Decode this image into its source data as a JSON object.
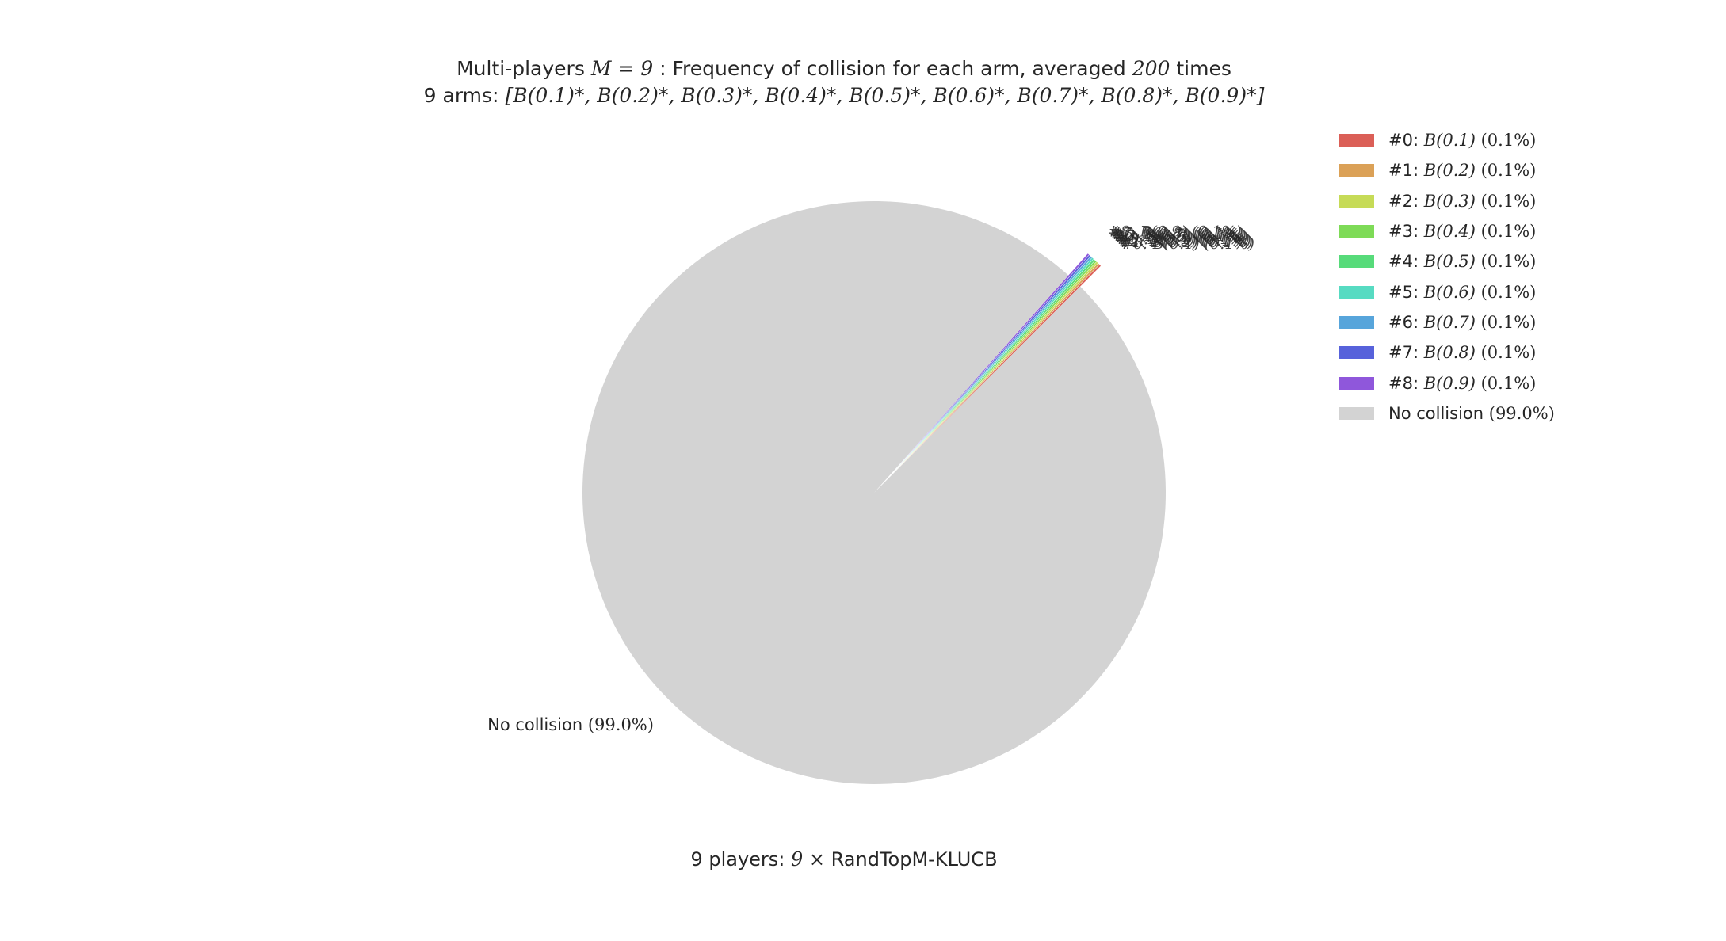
{
  "chart_data": {
    "type": "pie",
    "title_prefix": "Multi-players ",
    "title_math_1": "M = 9",
    "title_mid": " : Frequency of collision for each arm, averaged ",
    "title_math_2": "200",
    "title_suffix": " times",
    "subtitle_prefix": "9 arms: ",
    "subtitle_math": "[B(0.1)*, B(0.2)*, B(0.3)*, B(0.4)*, B(0.5)*, B(0.6)*, B(0.7)*, B(0.8)*, B(0.9)*]",
    "xlabel_prefix": "9 players: ",
    "xlabel_math": "9 ×",
    "xlabel_suffix": " RandTopM-KLUCB",
    "slices": [
      {
        "legend": "#0: ",
        "math": "B(0.1)",
        "pct_text": "(0.1%)",
        "value": 0.1,
        "color": "#db5f57"
      },
      {
        "legend": "#1: ",
        "math": "B(0.2)",
        "pct_text": "(0.1%)",
        "value": 0.1,
        "color": "#dba157"
      },
      {
        "legend": "#2: ",
        "math": "B(0.3)",
        "pct_text": "(0.1%)",
        "value": 0.1,
        "color": "#c6db57"
      },
      {
        "legend": "#3: ",
        "math": "B(0.4)",
        "pct_text": "(0.1%)",
        "value": 0.1,
        "color": "#7edb57"
      },
      {
        "legend": "#4: ",
        "math": "B(0.5)",
        "pct_text": "(0.1%)",
        "value": 0.1,
        "color": "#57db7a"
      },
      {
        "legend": "#5: ",
        "math": "B(0.6)",
        "pct_text": "(0.1%)",
        "value": 0.1,
        "color": "#57dbc2"
      },
      {
        "legend": "#6: ",
        "math": "B(0.7)",
        "pct_text": "(0.1%)",
        "value": 0.1,
        "color": "#57a5db"
      },
      {
        "legend": "#7: ",
        "math": "B(0.8)",
        "pct_text": "(0.1%)",
        "value": 0.1,
        "color": "#5762db"
      },
      {
        "legend": "#8: ",
        "math": "B(0.9)",
        "pct_text": "(0.1%)",
        "value": 0.1,
        "color": "#8f57db"
      }
    ],
    "no_collision": {
      "legend": "No collision ",
      "pct_text": "(99.0%)",
      "value": 99.0,
      "color": "#d3d3d3"
    },
    "explode_small_slices": true,
    "legend_position": "upper-right"
  }
}
